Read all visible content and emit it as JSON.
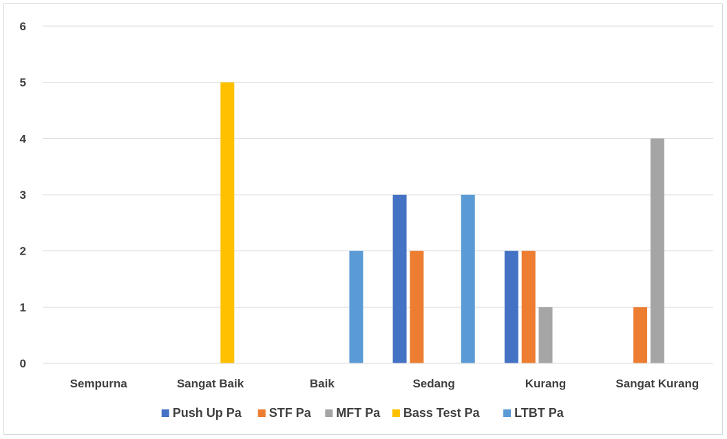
{
  "chart_data": {
    "type": "bar",
    "categories": [
      "Sempurna",
      "Sangat Baik",
      "Baik",
      "Sedang",
      "Kurang",
      "Sangat Kurang"
    ],
    "series": [
      {
        "name": "Push Up Pa",
        "color": "#4472c4",
        "values": [
          0,
          0,
          0,
          3,
          2,
          0
        ]
      },
      {
        "name": "STF Pa",
        "color": "#ed7d31",
        "values": [
          0,
          0,
          0,
          2,
          2,
          1
        ]
      },
      {
        "name": "MFT Pa",
        "color": "#a5a5a5",
        "values": [
          0,
          0,
          0,
          0,
          1,
          4
        ]
      },
      {
        "name": "Bass Test Pa",
        "color": "#ffc000",
        "values": [
          0,
          5,
          0,
          0,
          0,
          0
        ]
      },
      {
        "name": "LTBT Pa",
        "color": "#5b9bd5",
        "values": [
          0,
          0,
          2,
          3,
          0,
          0
        ]
      }
    ],
    "ylim": [
      0,
      6
    ],
    "yticks": [
      "0",
      "1",
      "2",
      "3",
      "4",
      "5",
      "6"
    ],
    "grid": true,
    "legend_position": "bottom"
  }
}
